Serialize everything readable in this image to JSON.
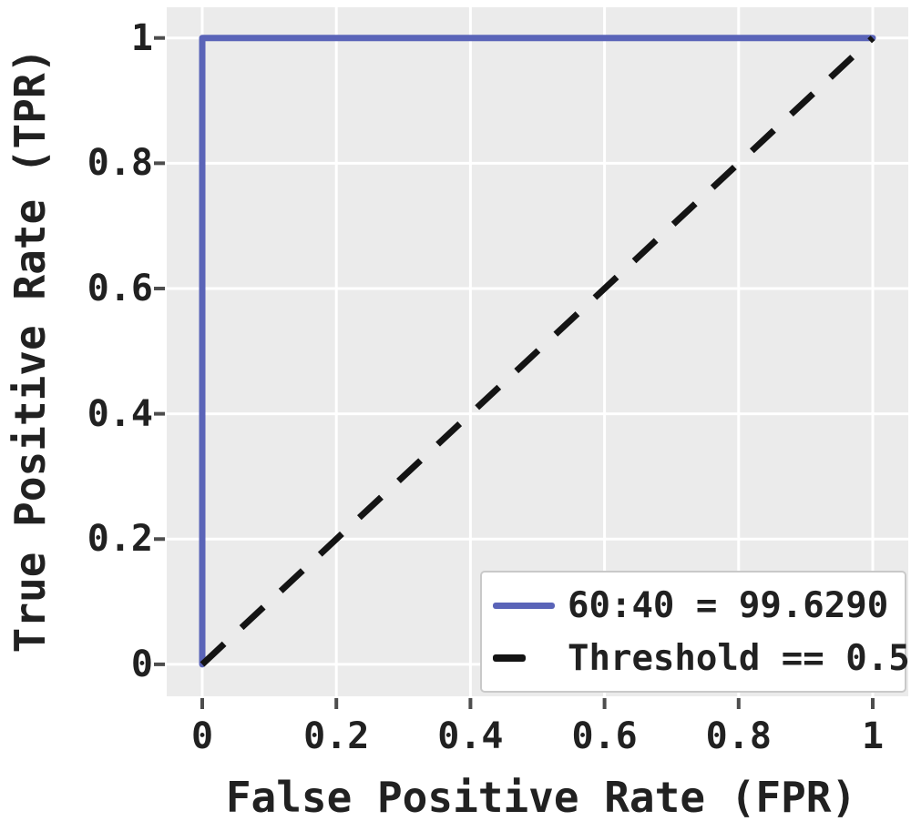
{
  "figure": {
    "background": "#ffffff",
    "plot_background": "#ebebeb",
    "gridline_color": "#ffffff",
    "tick_mark_color": "#4d4d4d",
    "text_color": "#212121",
    "legend_border_color": "#c9c9c9"
  },
  "chart_data": {
    "type": "line",
    "title": "",
    "xlabel": "False Positive Rate (FPR)",
    "ylabel": "True Positive Rate (TPR)",
    "xlim": [
      -0.053,
      1.053
    ],
    "ylim": [
      -0.051,
      1.049
    ],
    "grid": true,
    "legend_position": "lower right",
    "x_ticks": [
      0,
      0.2,
      0.4,
      0.6,
      0.8,
      1
    ],
    "x_tick_labels": [
      "0",
      "0.2",
      "0.4",
      "0.6",
      "0.8",
      "1"
    ],
    "y_ticks": [
      0,
      0.2,
      0.4,
      0.6,
      0.8,
      1
    ],
    "y_tick_labels": [
      "0",
      "0.2",
      "0.4",
      "0.6",
      "0.8",
      "1"
    ],
    "series": [
      {
        "name": "60:40 = 99.6290",
        "color": "#5a64b8",
        "style": "solid",
        "line_width": 7,
        "x": [
          0,
          0,
          1
        ],
        "y": [
          0,
          1,
          1
        ]
      },
      {
        "name": "Threshold == 0.5",
        "color": "#141414",
        "style": "dashed",
        "line_width": 7,
        "x": [
          0,
          1
        ],
        "y": [
          0,
          1
        ]
      }
    ]
  }
}
